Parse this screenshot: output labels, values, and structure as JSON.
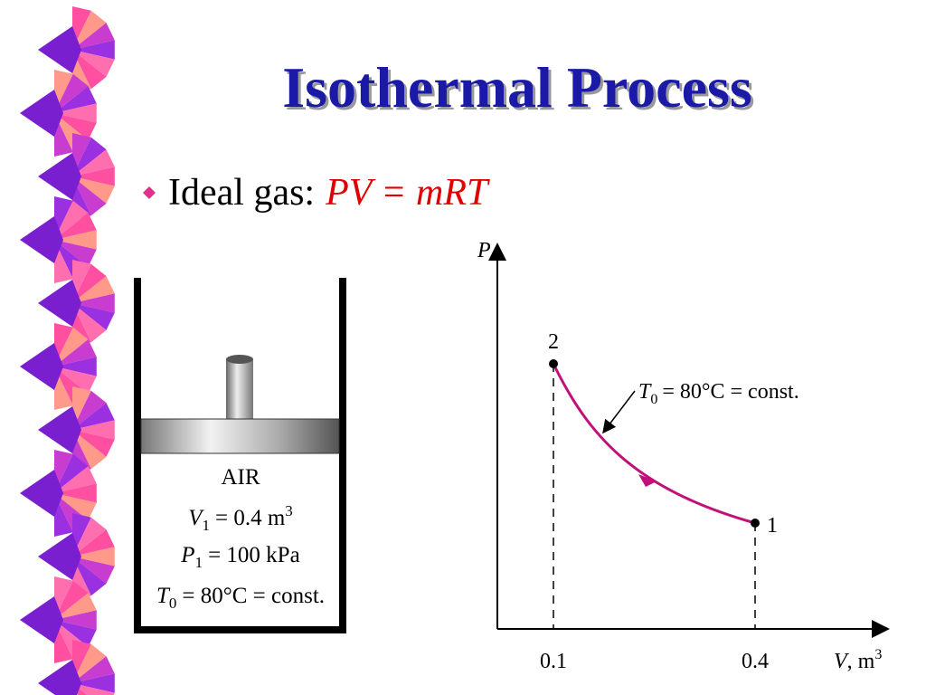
{
  "title": "Isothermal Process",
  "bullet": {
    "label": "Ideal gas:",
    "equation": "PV = mRT"
  },
  "cylinder": {
    "gas": "AIR",
    "lines": [
      {
        "symbol": "V",
        "sub": "1",
        "text": "= 0.4 m",
        "sup": "3"
      },
      {
        "symbol": "P",
        "sub": "1",
        "text": "= 100 kPa"
      },
      {
        "symbol": "T",
        "sub": "0",
        "text": "= 80°C = const."
      }
    ]
  },
  "graph": {
    "y_axis": "P",
    "x_axis": {
      "symbol": "V",
      "unit": ", m",
      "sup": "3"
    },
    "ticks": [
      "0.1",
      "0.4"
    ],
    "points": [
      "2",
      "1"
    ],
    "annotation": {
      "symbol": "T",
      "sub": "0",
      "text": "= 80°C = const."
    }
  }
}
